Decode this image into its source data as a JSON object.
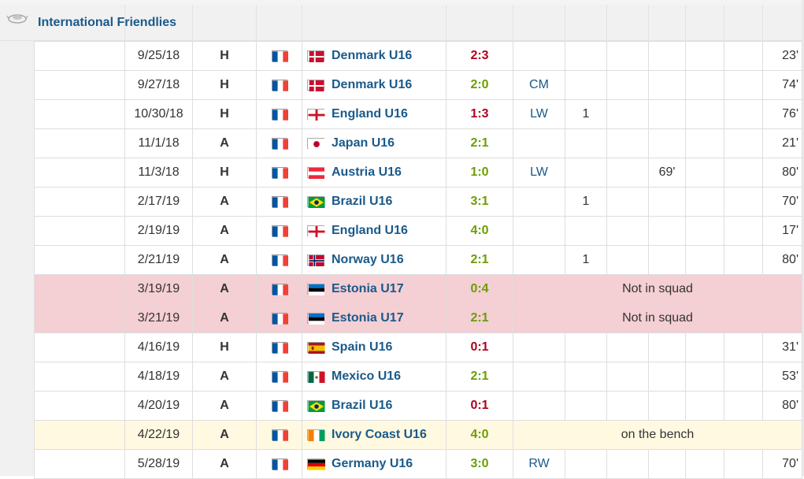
{
  "competition": {
    "title": "International Friendlies",
    "icon": "competition-logo-icon"
  },
  "player_flag": "fr",
  "rows": [
    {
      "date": "9/25/18",
      "loc": "H",
      "flag": "dk",
      "opponent": "Denmark U16",
      "result": "2:3",
      "outcome": "loss",
      "pos": "",
      "goals": "",
      "assists": "",
      "sub_in": "",
      "sub_out": "",
      "minutes": "23'",
      "note": ""
    },
    {
      "date": "9/27/18",
      "loc": "H",
      "flag": "dk",
      "opponent": "Denmark U16",
      "result": "2:0",
      "outcome": "win",
      "pos": "CM",
      "goals": "",
      "assists": "",
      "sub_in": "",
      "sub_out": "",
      "minutes": "74'",
      "note": ""
    },
    {
      "date": "10/30/18",
      "loc": "H",
      "flag": "en",
      "opponent": "England U16",
      "result": "1:3",
      "outcome": "loss",
      "pos": "LW",
      "goals": "1",
      "assists": "",
      "sub_in": "",
      "sub_out": "",
      "minutes": "76'",
      "note": ""
    },
    {
      "date": "11/1/18",
      "loc": "A",
      "flag": "jp",
      "opponent": "Japan U16",
      "result": "2:1",
      "outcome": "win",
      "pos": "",
      "goals": "",
      "assists": "",
      "sub_in": "",
      "sub_out": "",
      "minutes": "21'",
      "note": ""
    },
    {
      "date": "11/3/18",
      "loc": "H",
      "flag": "at",
      "opponent": "Austria U16",
      "result": "1:0",
      "outcome": "win",
      "pos": "LW",
      "goals": "",
      "assists": "",
      "sub_in": "69'",
      "sub_out": "",
      "minutes": "80'",
      "note": ""
    },
    {
      "date": "2/17/19",
      "loc": "A",
      "flag": "br",
      "opponent": "Brazil U16",
      "result": "3:1",
      "outcome": "win",
      "pos": "",
      "goals": "1",
      "assists": "",
      "sub_in": "",
      "sub_out": "",
      "minutes": "70'",
      "note": ""
    },
    {
      "date": "2/19/19",
      "loc": "A",
      "flag": "en",
      "opponent": "England U16",
      "result": "4:0",
      "outcome": "win",
      "pos": "",
      "goals": "",
      "assists": "",
      "sub_in": "",
      "sub_out": "",
      "minutes": "17'",
      "note": ""
    },
    {
      "date": "2/21/19",
      "loc": "A",
      "flag": "no",
      "opponent": "Norway U16",
      "result": "2:1",
      "outcome": "win",
      "pos": "",
      "goals": "1",
      "assists": "",
      "sub_in": "",
      "sub_out": "",
      "minutes": "80'",
      "note": ""
    },
    {
      "date": "3/19/19",
      "loc": "A",
      "flag": "ee",
      "opponent": "Estonia U17",
      "result": "0:4",
      "outcome": "win",
      "pos": "",
      "goals": "",
      "assists": "",
      "sub_in": "",
      "sub_out": "",
      "minutes": "",
      "note": "Not in squad",
      "highlight": "red"
    },
    {
      "date": "3/21/19",
      "loc": "A",
      "flag": "ee",
      "opponent": "Estonia U17",
      "result": "2:1",
      "outcome": "win",
      "pos": "",
      "goals": "",
      "assists": "",
      "sub_in": "",
      "sub_out": "",
      "minutes": "",
      "note": "Not in squad",
      "highlight": "red"
    },
    {
      "date": "4/16/19",
      "loc": "H",
      "flag": "es",
      "opponent": "Spain U16",
      "result": "0:1",
      "outcome": "loss",
      "pos": "",
      "goals": "",
      "assists": "",
      "sub_in": "",
      "sub_out": "",
      "minutes": "31'",
      "note": ""
    },
    {
      "date": "4/18/19",
      "loc": "A",
      "flag": "mx",
      "opponent": "Mexico U16",
      "result": "2:1",
      "outcome": "win",
      "pos": "",
      "goals": "",
      "assists": "",
      "sub_in": "",
      "sub_out": "",
      "minutes": "53'",
      "note": ""
    },
    {
      "date": "4/20/19",
      "loc": "A",
      "flag": "br",
      "opponent": "Brazil U16",
      "result": "0:1",
      "outcome": "loss",
      "pos": "",
      "goals": "",
      "assists": "",
      "sub_in": "",
      "sub_out": "",
      "minutes": "80'",
      "note": ""
    },
    {
      "date": "4/22/19",
      "loc": "A",
      "flag": "ci",
      "opponent": "Ivory Coast U16",
      "result": "4:0",
      "outcome": "win",
      "pos": "",
      "goals": "",
      "assists": "",
      "sub_in": "",
      "sub_out": "",
      "minutes": "",
      "note": "on the bench",
      "highlight": "yellow"
    },
    {
      "date": "5/28/19",
      "loc": "A",
      "flag": "de",
      "opponent": "Germany U16",
      "result": "3:0",
      "outcome": "win",
      "pos": "RW",
      "goals": "",
      "assists": "",
      "sub_in": "",
      "sub_out": "",
      "minutes": "70'",
      "note": ""
    }
  ]
}
